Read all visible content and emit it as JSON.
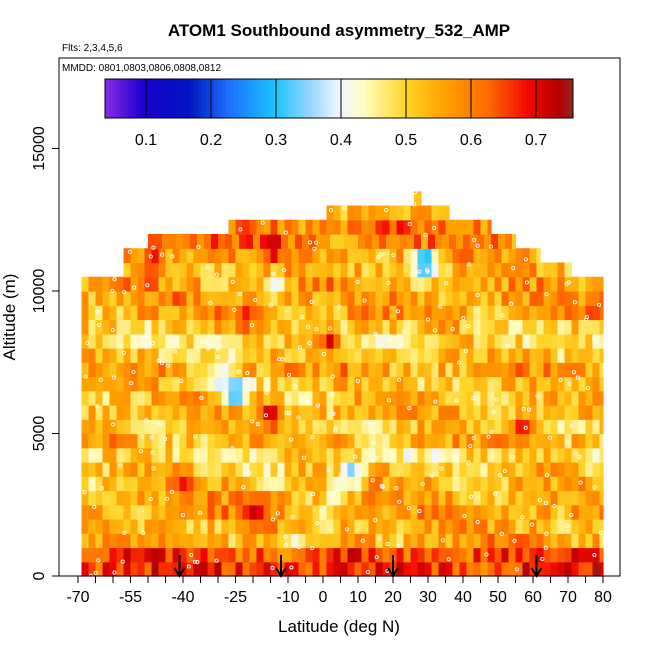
{
  "chart_data": {
    "type": "heatmap",
    "title": "ATOM1 Southbound asymmetry_532_AMP",
    "flights_label": "Flts: 2,3,4,5,6",
    "dates_label": "MMDD: 0801,0803,0806,0808,0812",
    "xlabel": "Latitude (deg N)",
    "ylabel": "Altitude (m)",
    "xlim": [
      -70,
      82
    ],
    "ylim": [
      0,
      17500
    ],
    "x_major_ticks": [
      -70,
      -55,
      -40,
      -25,
      -10,
      0,
      10,
      20,
      30,
      40,
      50,
      60,
      70,
      80
    ],
    "x_minor_ticks": [
      -65,
      -60,
      -50,
      -45,
      -35,
      -30,
      -20,
      -15,
      -5,
      5,
      15,
      25,
      35,
      45,
      55,
      65,
      75
    ],
    "x_tick_labels": [
      "-70",
      "-55",
      "-40",
      "-25",
      "-10",
      "0",
      "10",
      "20",
      "30",
      "40",
      "50",
      "60",
      "70",
      "80"
    ],
    "y_ticks": [
      0,
      5000,
      10000,
      15000
    ],
    "y_tick_labels": [
      "0",
      "5000",
      "10000",
      "15000"
    ],
    "colorbar": {
      "range": [
        0.04,
        0.76
      ],
      "ticks": [
        0.1,
        0.2,
        0.3,
        0.4,
        0.5,
        0.6,
        0.7
      ],
      "tick_labels": [
        "0.1",
        "0.2",
        "0.3",
        "0.4",
        "0.5",
        "0.6",
        "0.7"
      ],
      "stops": [
        {
          "v": 0.04,
          "color": "#8a2be2"
        },
        {
          "v": 0.1,
          "color": "#1a00d0"
        },
        {
          "v": 0.17,
          "color": "#0016c0"
        },
        {
          "v": 0.23,
          "color": "#1e6eff"
        },
        {
          "v": 0.3,
          "color": "#18c4ff"
        },
        {
          "v": 0.36,
          "color": "#9fd8ff"
        },
        {
          "v": 0.4,
          "color": "#f0f6ff"
        },
        {
          "v": 0.44,
          "color": "#fffcc0"
        },
        {
          "v": 0.5,
          "color": "#ffd72a"
        },
        {
          "v": 0.56,
          "color": "#ffa400"
        },
        {
          "v": 0.63,
          "color": "#ff6a00"
        },
        {
          "v": 0.69,
          "color": "#f20800"
        },
        {
          "v": 0.74,
          "color": "#b40000"
        },
        {
          "v": 0.76,
          "color": "#8e2a22"
        }
      ]
    },
    "arrow_latitudes": [
      -41,
      -12,
      20,
      61
    ],
    "field": {
      "altitude_layers_m": [
        {
          "alt": 250,
          "base": 0.67
        },
        {
          "alt": 750,
          "base": 0.65
        },
        {
          "alt": 1250,
          "base": 0.56
        },
        {
          "alt": 1750,
          "base": 0.55
        },
        {
          "alt": 2250,
          "base": 0.57
        },
        {
          "alt": 2750,
          "base": 0.55
        },
        {
          "alt": 3250,
          "base": 0.54
        },
        {
          "alt": 3750,
          "base": 0.52
        },
        {
          "alt": 4250,
          "base": 0.49
        },
        {
          "alt": 4750,
          "base": 0.55
        },
        {
          "alt": 5250,
          "base": 0.53
        },
        {
          "alt": 5750,
          "base": 0.55
        },
        {
          "alt": 6250,
          "base": 0.53
        },
        {
          "alt": 6750,
          "base": 0.52
        },
        {
          "alt": 7250,
          "base": 0.56
        },
        {
          "alt": 7750,
          "base": 0.52
        },
        {
          "alt": 8250,
          "base": 0.5
        },
        {
          "alt": 8750,
          "base": 0.53
        },
        {
          "alt": 9250,
          "base": 0.56
        },
        {
          "alt": 9750,
          "base": 0.57
        },
        {
          "alt": 10250,
          "base": 0.56
        },
        {
          "alt": 10750,
          "base": 0.55
        },
        {
          "alt": 11250,
          "base": 0.57
        },
        {
          "alt": 11750,
          "base": 0.6
        },
        {
          "alt": 12250,
          "base": 0.6
        },
        {
          "alt": 12750,
          "base": 0.54
        },
        {
          "alt": 13250,
          "base": 0.52
        }
      ],
      "envelope": [
        {
          "alt_min": 0,
          "alt_max": 10500,
          "lat_min": -69,
          "lat_max": 80
        },
        {
          "alt_min": 10500,
          "alt_max": 11000,
          "lat_min": -57,
          "lat_max": 71
        },
        {
          "alt_min": 11000,
          "alt_max": 11500,
          "lat_min": -57,
          "lat_max": 62
        },
        {
          "alt_min": 11500,
          "alt_max": 12000,
          "lat_min": -50,
          "lat_max": 55
        },
        {
          "alt_min": 12000,
          "alt_max": 12500,
          "lat_min": -27,
          "lat_max": 48
        },
        {
          "alt_min": 12500,
          "alt_max": 13000,
          "lat_min": 1,
          "lat_max": 36
        },
        {
          "alt_min": 13000,
          "alt_max": 13500,
          "lat_min": 26,
          "lat_max": 28
        }
      ],
      "anomalies": [
        {
          "lat": -25,
          "alt": 6500,
          "value": 0.26
        },
        {
          "lat": -29,
          "alt": 7000,
          "value": 0.36
        },
        {
          "lat": -26,
          "alt": 7900,
          "value": 0.43
        },
        {
          "lat": -44,
          "alt": 8000,
          "value": 0.44
        },
        {
          "lat": -6,
          "alt": 6300,
          "value": 0.44
        },
        {
          "lat": 8,
          "alt": 3600,
          "value": 0.33
        },
        {
          "lat": 4,
          "alt": 3000,
          "value": 0.41
        },
        {
          "lat": 0,
          "alt": 2000,
          "value": 0.43
        },
        {
          "lat": 29,
          "alt": 11000,
          "value": 0.2
        },
        {
          "lat": -14,
          "alt": 10200,
          "value": 0.4
        },
        {
          "lat": 24,
          "alt": 8500,
          "value": 0.43
        },
        {
          "lat": 45,
          "alt": 9000,
          "value": 0.44
        },
        {
          "lat": -8,
          "alt": 1200,
          "value": 0.42
        },
        {
          "lat": -35,
          "alt": 4100,
          "value": 0.43
        },
        {
          "lat": 15,
          "alt": 5000,
          "value": 0.43
        },
        {
          "lat": -20,
          "alt": 2400,
          "value": 0.73
        },
        {
          "lat": -15,
          "alt": 5700,
          "value": 0.72
        },
        {
          "lat": 2,
          "alt": 8200,
          "value": 0.72
        },
        {
          "lat": -14,
          "alt": 11600,
          "value": 0.73
        },
        {
          "lat": 57,
          "alt": 5100,
          "value": 0.71
        },
        {
          "lat": -22,
          "alt": 9100,
          "value": 0.7
        },
        {
          "lat": -48,
          "alt": 11100,
          "value": 0.7
        },
        {
          "lat": -40,
          "alt": 3300,
          "value": 0.69
        }
      ]
    }
  }
}
